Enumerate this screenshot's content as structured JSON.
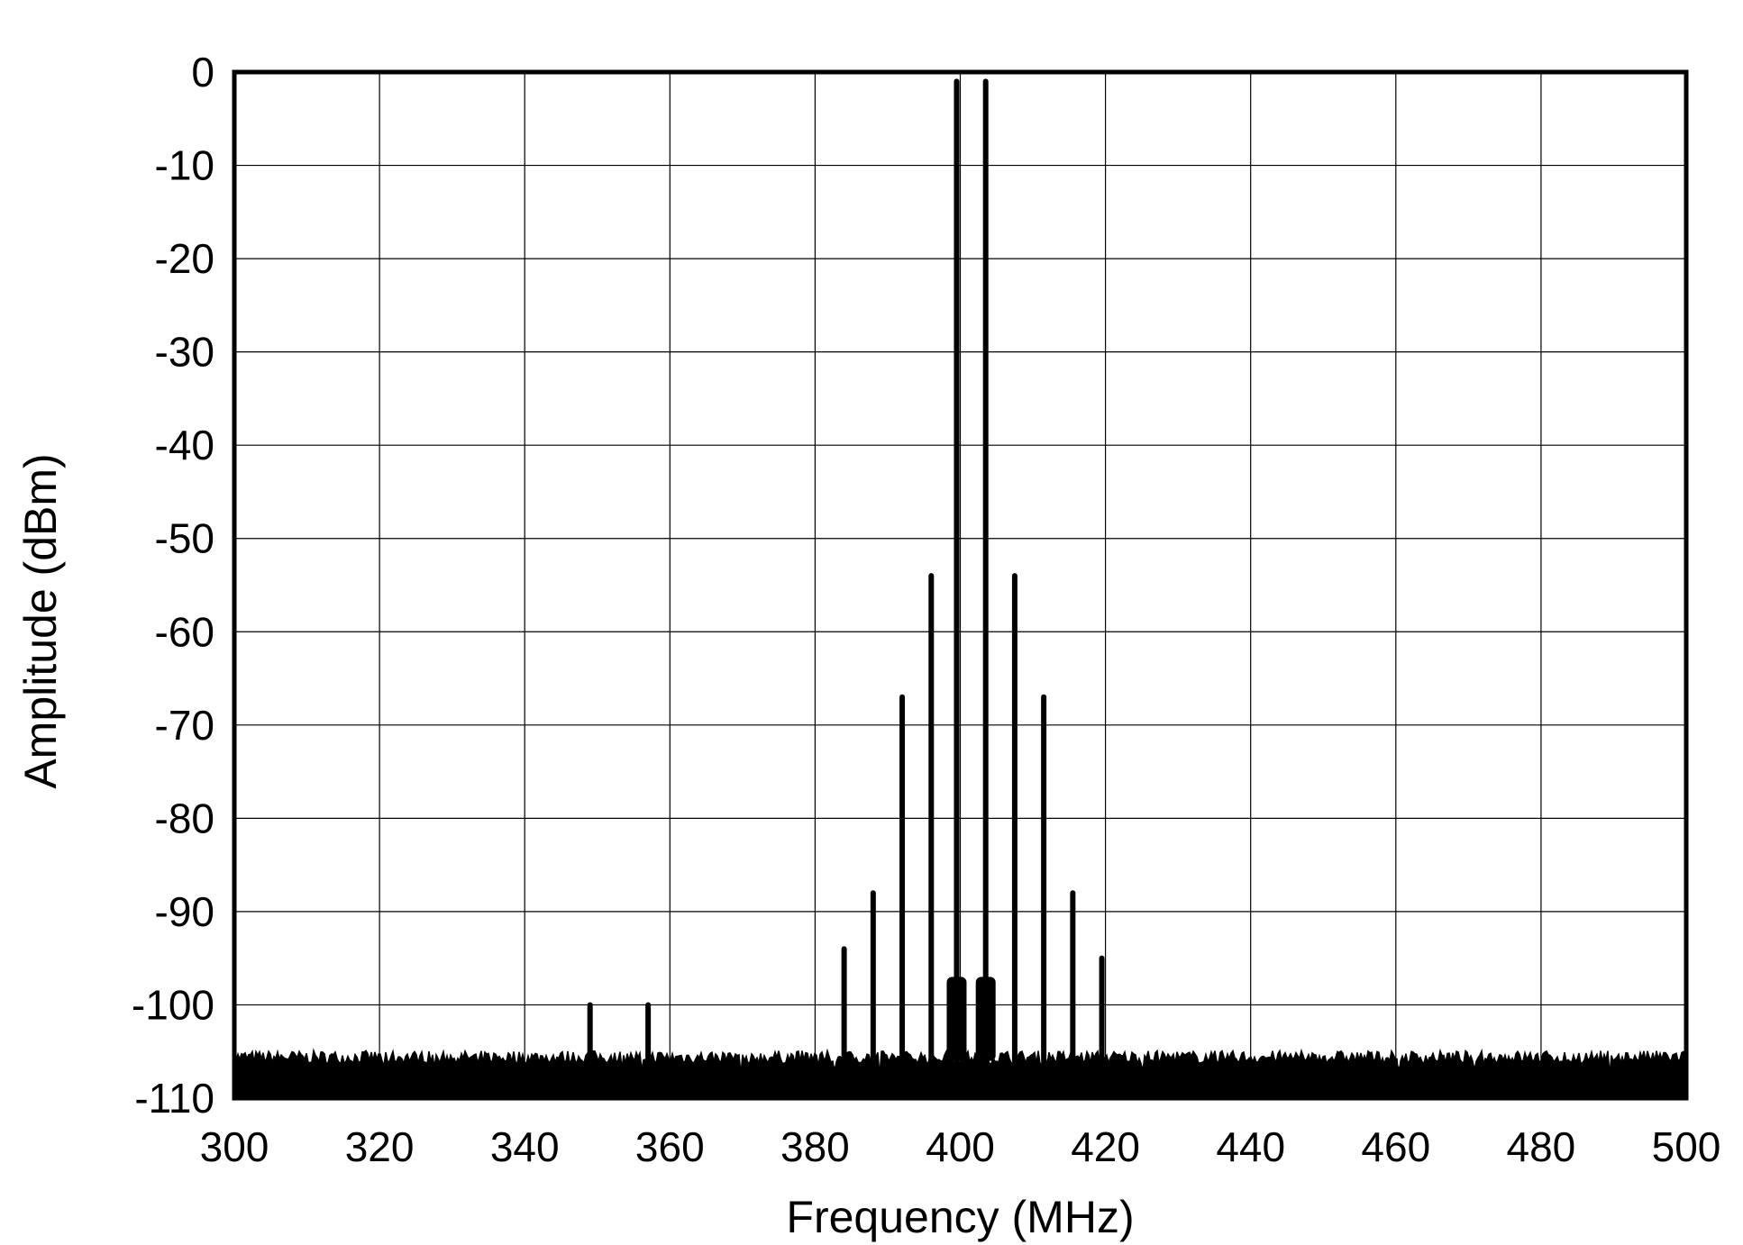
{
  "chart_data": {
    "type": "line",
    "title": "",
    "xlabel": "Frequency (MHz)",
    "ylabel": "Amplitude (dBm)",
    "xlim": [
      300,
      500
    ],
    "ylim": [
      -110,
      0
    ],
    "xticks": [
      "300",
      "320",
      "340",
      "360",
      "380",
      "400",
      "420",
      "440",
      "460",
      "480",
      "500"
    ],
    "yticks": [
      "0",
      "-10",
      "-20",
      "-30",
      "-40",
      "-50",
      "-60",
      "-70",
      "-80",
      "-90",
      "-100",
      "-110"
    ],
    "grid": true,
    "legend": "none",
    "line_color": "#000000",
    "noise_floor_dbm": [
      -106,
      -110
    ],
    "series": [
      {
        "name": "",
        "spurs": [
          {
            "x": 349,
            "y": -100
          },
          {
            "x": 357,
            "y": -100
          },
          {
            "x": 384,
            "y": -94
          },
          {
            "x": 388,
            "y": -88
          },
          {
            "x": 392,
            "y": -67
          },
          {
            "x": 396,
            "y": -54
          },
          {
            "x": 399.5,
            "y": -1
          },
          {
            "x": 403.5,
            "y": -1
          },
          {
            "x": 407.5,
            "y": -54
          },
          {
            "x": 411.5,
            "y": -67
          },
          {
            "x": 415.5,
            "y": -88
          },
          {
            "x": 419.5,
            "y": -95
          }
        ]
      }
    ]
  }
}
